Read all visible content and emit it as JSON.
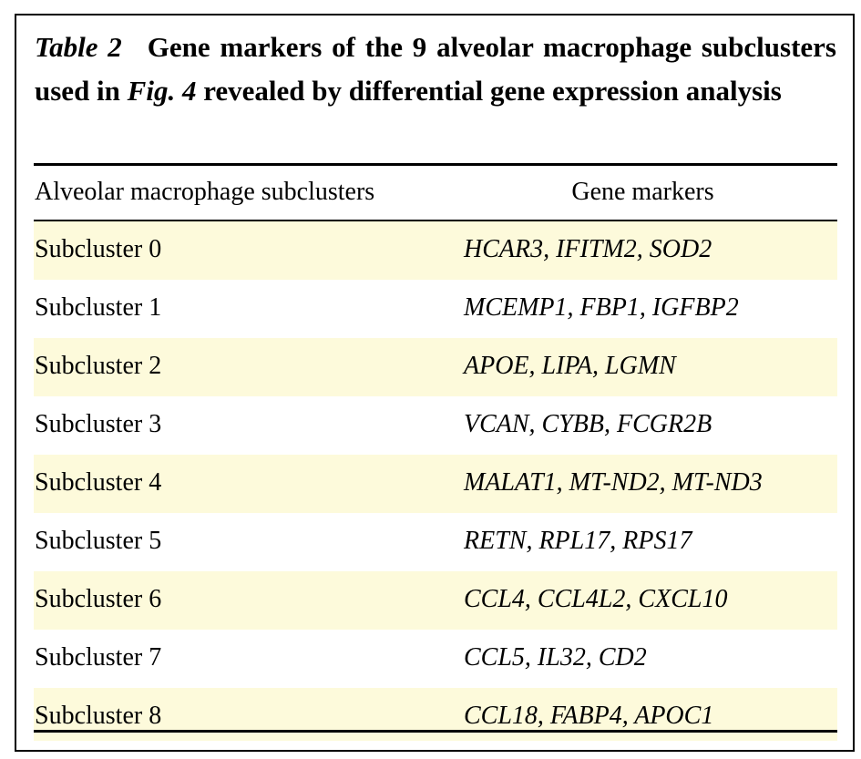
{
  "caption": {
    "table_label": "Table 2",
    "text_before_ref": "Gene markers of the 9 alveolar macrophage subclusters used in ",
    "figure_ref": "Fig. 4",
    "text_after_ref": " revealed by differential gene expression analysis"
  },
  "table": {
    "headers": [
      "Alveolar macrophage subclusters",
      "Gene markers"
    ],
    "rows": [
      {
        "subcluster": "Subcluster 0",
        "markers": "HCAR3, IFITM2, SOD2"
      },
      {
        "subcluster": "Subcluster 1",
        "markers": "MCEMP1, FBP1, IGFBP2"
      },
      {
        "subcluster": "Subcluster 2",
        "markers": "APOE, LIPA, LGMN"
      },
      {
        "subcluster": "Subcluster 3",
        "markers": "VCAN, CYBB, FCGR2B"
      },
      {
        "subcluster": "Subcluster 4",
        "markers": "MALAT1, MT-ND2, MT-ND3"
      },
      {
        "subcluster": "Subcluster 5",
        "markers": "RETN, RPL17, RPS17"
      },
      {
        "subcluster": "Subcluster 6",
        "markers": "CCL4, CCL4L2, CXCL10"
      },
      {
        "subcluster": "Subcluster 7",
        "markers": "CCL5, IL32, CD2"
      },
      {
        "subcluster": "Subcluster 8",
        "markers": "CCL18, FABP4, APOC1"
      }
    ],
    "row_shading_color": "#fdfadb"
  }
}
